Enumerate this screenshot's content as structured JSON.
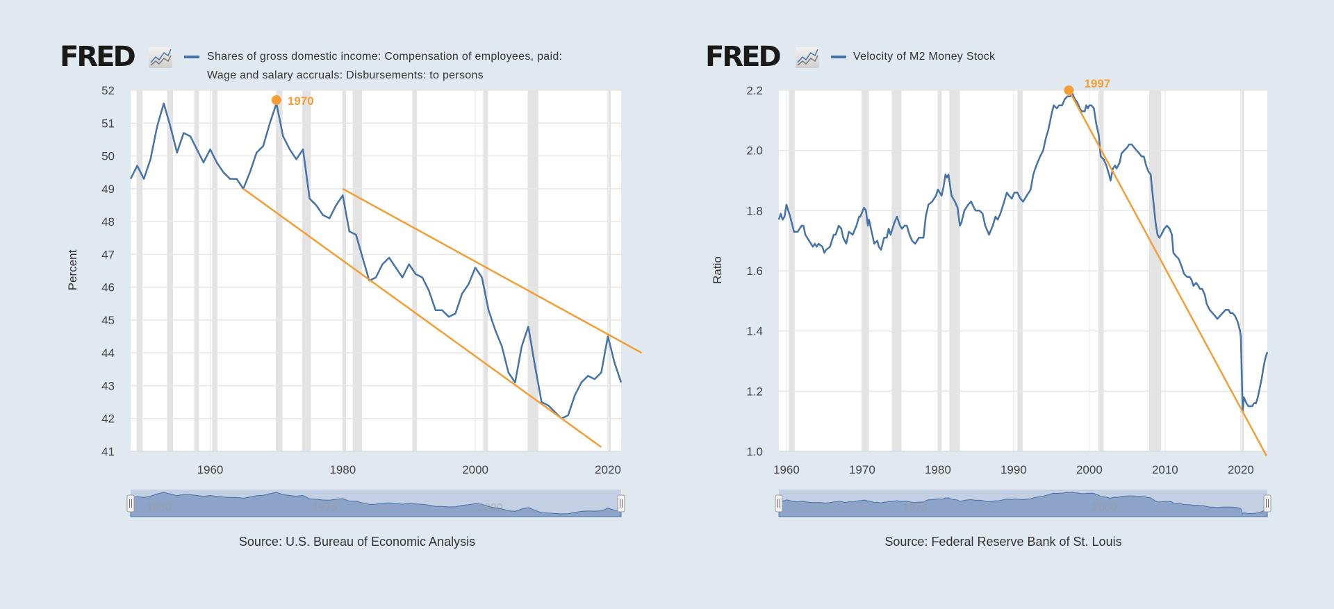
{
  "colors": {
    "background": "#e1e9f0",
    "series_line": "#4572a7",
    "trend_line": "#f59e36",
    "recession_band": "#e3e3e3",
    "navigator_fill": "#8ea3c8",
    "navigator_bg": "#c3d0e4"
  },
  "chart_data": [
    {
      "type": "line",
      "logo": "FRED",
      "legend": [
        "Shares of gross domestic income: Compensation of employees, paid:",
        "Wage and salary accruals: Disbursements: to persons"
      ],
      "ylabel": "Percent",
      "source": "Source: U.S. Bureau of Economic Analysis",
      "xlim": [
        1948,
        2022
      ],
      "ylim": [
        41,
        52
      ],
      "yticks": [
        41,
        42,
        43,
        44,
        45,
        46,
        47,
        48,
        49,
        50,
        51,
        52
      ],
      "ytick_labels": [
        "41",
        "42",
        "43",
        "44",
        "45",
        "46",
        "47",
        "48",
        "49",
        "50",
        "51",
        "52"
      ],
      "xticks": [
        1960,
        1980,
        2000,
        2020
      ],
      "xtick_labels": [
        "1960",
        "1980",
        "2000",
        "2020"
      ],
      "grid": true,
      "navigator_labels": [
        {
          "year": 1950,
          "label": "1950"
        },
        {
          "year": 1975,
          "label": "1975"
        },
        {
          "year": 2000,
          "label": "2000"
        }
      ],
      "recessions": [
        [
          1948.9,
          1949.8
        ],
        [
          1953.5,
          1954.4
        ],
        [
          1957.6,
          1958.3
        ],
        [
          1960.3,
          1961.1
        ],
        [
          1969.9,
          1970.9
        ],
        [
          1973.9,
          1975.2
        ],
        [
          1980.0,
          1980.5
        ],
        [
          1981.5,
          1982.9
        ],
        [
          1990.5,
          1991.2
        ],
        [
          2001.2,
          2001.9
        ],
        [
          2007.9,
          2009.5
        ],
        [
          2020.1,
          2020.4
        ]
      ],
      "series": [
        {
          "x": [
            1948,
            1949,
            1950,
            1951,
            1952,
            1953,
            1954,
            1955,
            1956,
            1957,
            1958,
            1959,
            1960,
            1961,
            1962,
            1963,
            1964,
            1965,
            1966,
            1967,
            1968,
            1969,
            1970,
            1971,
            1972,
            1973,
            1974,
            1975,
            1976,
            1977,
            1978,
            1979,
            1980,
            1981,
            1982,
            1983,
            1984,
            1985,
            1986,
            1987,
            1988,
            1989,
            1990,
            1991,
            1992,
            1993,
            1994,
            1995,
            1996,
            1997,
            1998,
            1999,
            2000,
            2001,
            2002,
            2003,
            2004,
            2005,
            2006,
            2007,
            2008,
            2009,
            2010,
            2011,
            2012,
            2013,
            2014,
            2015,
            2016,
            2017,
            2018,
            2019,
            2020,
            2021,
            2022
          ],
          "y": [
            49.3,
            49.7,
            49.3,
            49.9,
            50.9,
            51.6,
            50.9,
            50.1,
            50.7,
            50.6,
            50.2,
            49.8,
            50.2,
            49.8,
            49.5,
            49.3,
            49.3,
            49.0,
            49.5,
            50.1,
            50.3,
            51.0,
            51.6,
            50.6,
            50.2,
            49.9,
            50.2,
            48.7,
            48.5,
            48.2,
            48.1,
            48.5,
            48.8,
            47.7,
            47.6,
            46.9,
            46.2,
            46.3,
            46.7,
            46.9,
            46.6,
            46.3,
            46.7,
            46.4,
            46.3,
            45.9,
            45.3,
            45.3,
            45.1,
            45.2,
            45.8,
            46.1,
            46.6,
            46.3,
            45.3,
            44.7,
            44.2,
            43.4,
            43.1,
            44.2,
            44.8,
            43.6,
            42.5,
            42.4,
            42.2,
            42.0,
            42.1,
            42.7,
            43.1,
            43.3,
            43.2,
            43.4,
            44.5,
            43.7,
            43.1
          ]
        }
      ],
      "trend_lines": [
        {
          "x": [
            1965,
            2019
          ],
          "y": [
            49.0,
            41.13
          ]
        },
        {
          "x": [
            1980,
            2025.1
          ],
          "y": [
            49.0,
            44.0
          ]
        }
      ],
      "annotation": {
        "x": 1970,
        "y": 51.7,
        "label": "1970"
      }
    },
    {
      "type": "line",
      "logo": "FRED",
      "legend": [
        "Velocity of M2 Money Stock"
      ],
      "ylabel": "Ratio",
      "source": "Source: Federal Reserve Bank of St. Louis",
      "xlim": [
        1959,
        2023.5
      ],
      "ylim": [
        1.0,
        2.2
      ],
      "yticks": [
        1.0,
        1.2,
        1.4,
        1.6,
        1.8,
        2.0,
        2.2
      ],
      "ytick_labels": [
        "1.0",
        "1.2",
        "1.4",
        "1.6",
        "1.8",
        "2.0",
        "2.2"
      ],
      "xticks": [
        1960,
        1970,
        1980,
        1990,
        2000,
        2010,
        2020
      ],
      "xtick_labels": [
        "1960",
        "1970",
        "1980",
        "1990",
        "2000",
        "2010",
        "2020"
      ],
      "grid": true,
      "navigator_labels": [
        {
          "year": 1975,
          "label": "1975"
        },
        {
          "year": 2000,
          "label": "2000"
        }
      ],
      "recessions": [
        [
          1960.3,
          1961.1
        ],
        [
          1969.9,
          1970.9
        ],
        [
          1973.9,
          1975.2
        ],
        [
          1980.0,
          1980.5
        ],
        [
          1981.5,
          1982.9
        ],
        [
          1990.5,
          1991.2
        ],
        [
          2001.2,
          2001.9
        ],
        [
          2007.9,
          2009.5
        ],
        [
          2020.1,
          2020.4
        ]
      ],
      "series": [
        {
          "x": [
            1959.0,
            1959.25,
            1959.5,
            1959.75,
            1960.0,
            1960.5,
            1961.0,
            1961.5,
            1962.0,
            1962.25,
            1962.5,
            1963.0,
            1963.5,
            1963.75,
            1964.0,
            1964.25,
            1964.75,
            1965.0,
            1965.25,
            1965.75,
            1966.25,
            1966.5,
            1966.9,
            1967.25,
            1967.5,
            1967.9,
            1968.25,
            1968.75,
            1969.25,
            1969.6,
            1969.75,
            1970.25,
            1970.5,
            1970.75,
            1970.9,
            1971.25,
            1971.6,
            1972.0,
            1972.2,
            1972.5,
            1972.9,
            1973.25,
            1973.5,
            1973.75,
            1974.25,
            1974.6,
            1975.0,
            1975.25,
            1975.6,
            1975.9,
            1976.25,
            1976.6,
            1977.0,
            1977.5,
            1977.9,
            1978.1,
            1978.4,
            1978.75,
            1979.25,
            1979.75,
            1980.0,
            1980.5,
            1980.75,
            1981.0,
            1981.2,
            1981.4,
            1981.8,
            1982.25,
            1982.6,
            1982.9,
            1983.1,
            1983.5,
            1984.0,
            1984.4,
            1984.75,
            1985.0,
            1985.5,
            1985.9,
            1986.25,
            1986.6,
            1986.75,
            1987.25,
            1987.6,
            1987.9,
            1988.25,
            1988.75,
            1989.1,
            1989.4,
            1989.75,
            1990.1,
            1990.5,
            1990.9,
            1991.25,
            1991.75,
            1992.25,
            1992.6,
            1993.0,
            1993.5,
            1993.9,
            1994.25,
            1994.6,
            1995.0,
            1995.3,
            1995.7,
            1996.0,
            1996.4,
            1996.75,
            1997.1,
            1997.5,
            1997.75,
            1998.1,
            1998.4,
            1998.75,
            1999.0,
            1999.4,
            1999.6,
            1999.8,
            2000.0,
            2000.25,
            2000.6,
            2000.9,
            2001.25,
            2001.5,
            2001.9,
            2002.25,
            2002.6,
            2002.8,
            2003.1,
            2003.4,
            2003.6,
            2004.0,
            2004.25,
            2004.6,
            2005.0,
            2005.25,
            2005.6,
            2005.9,
            2006.25,
            2006.6,
            2006.9,
            2007.2,
            2007.5,
            2007.8,
            2008.1,
            2008.25,
            2008.5,
            2008.75,
            2009.0,
            2009.25,
            2009.5,
            2009.9,
            2010.25,
            2010.6,
            2010.9,
            2011.1,
            2011.4,
            2011.8,
            2012.25,
            2012.5,
            2012.9,
            2013.25,
            2013.5,
            2013.75,
            2014.1,
            2014.4,
            2014.6,
            2014.9,
            2015.25,
            2015.5,
            2015.9,
            2016.25,
            2016.6,
            2016.9,
            2017.25,
            2017.6,
            2018.0,
            2018.4,
            2018.6,
            2018.9,
            2019.25,
            2019.6,
            2019.9,
            2020.0,
            2020.25,
            2020.4,
            2020.75,
            2021.0,
            2021.25,
            2021.5,
            2021.75,
            2022.0,
            2022.25,
            2022.5,
            2022.75,
            2023.0,
            2023.25,
            2023.5
          ],
          "y": [
            1.77,
            1.79,
            1.77,
            1.78,
            1.82,
            1.78,
            1.73,
            1.73,
            1.75,
            1.75,
            1.72,
            1.7,
            1.68,
            1.69,
            1.68,
            1.69,
            1.68,
            1.66,
            1.67,
            1.68,
            1.72,
            1.72,
            1.75,
            1.74,
            1.71,
            1.69,
            1.73,
            1.72,
            1.75,
            1.78,
            1.78,
            1.81,
            1.8,
            1.75,
            1.77,
            1.73,
            1.69,
            1.7,
            1.68,
            1.67,
            1.71,
            1.71,
            1.74,
            1.72,
            1.76,
            1.78,
            1.75,
            1.74,
            1.75,
            1.75,
            1.72,
            1.7,
            1.69,
            1.71,
            1.71,
            1.71,
            1.78,
            1.82,
            1.83,
            1.85,
            1.87,
            1.85,
            1.88,
            1.92,
            1.91,
            1.92,
            1.85,
            1.83,
            1.81,
            1.75,
            1.76,
            1.8,
            1.82,
            1.83,
            1.81,
            1.8,
            1.8,
            1.79,
            1.75,
            1.73,
            1.72,
            1.75,
            1.78,
            1.77,
            1.79,
            1.83,
            1.86,
            1.85,
            1.84,
            1.86,
            1.86,
            1.84,
            1.83,
            1.85,
            1.87,
            1.92,
            1.95,
            1.98,
            2.0,
            2.04,
            2.07,
            2.12,
            2.15,
            2.14,
            2.15,
            2.15,
            2.17,
            2.18,
            2.18,
            2.19,
            2.17,
            2.16,
            2.14,
            2.13,
            2.13,
            2.15,
            2.14,
            2.15,
            2.15,
            2.14,
            2.09,
            2.05,
            1.98,
            1.97,
            1.95,
            1.92,
            1.9,
            1.94,
            1.95,
            1.94,
            1.96,
            1.99,
            2.0,
            2.01,
            2.02,
            2.02,
            2.01,
            2.0,
            1.99,
            1.98,
            1.98,
            1.95,
            1.93,
            1.92,
            1.88,
            1.82,
            1.76,
            1.72,
            1.71,
            1.72,
            1.74,
            1.75,
            1.74,
            1.72,
            1.66,
            1.65,
            1.64,
            1.61,
            1.59,
            1.58,
            1.58,
            1.57,
            1.55,
            1.56,
            1.55,
            1.54,
            1.54,
            1.52,
            1.49,
            1.47,
            1.46,
            1.45,
            1.44,
            1.45,
            1.46,
            1.47,
            1.47,
            1.46,
            1.46,
            1.45,
            1.43,
            1.4,
            1.38,
            1.13,
            1.18,
            1.16,
            1.15,
            1.15,
            1.15,
            1.16,
            1.16,
            1.18,
            1.21,
            1.24,
            1.28,
            1.31,
            1.33
          ]
        }
      ],
      "trend_lines": [
        {
          "x": [
            1997.3,
            2023.4
          ],
          "y": [
            2.2,
            0.985
          ]
        }
      ],
      "annotation": {
        "x": 1997.3,
        "y": 2.2,
        "label": "1997"
      }
    }
  ]
}
